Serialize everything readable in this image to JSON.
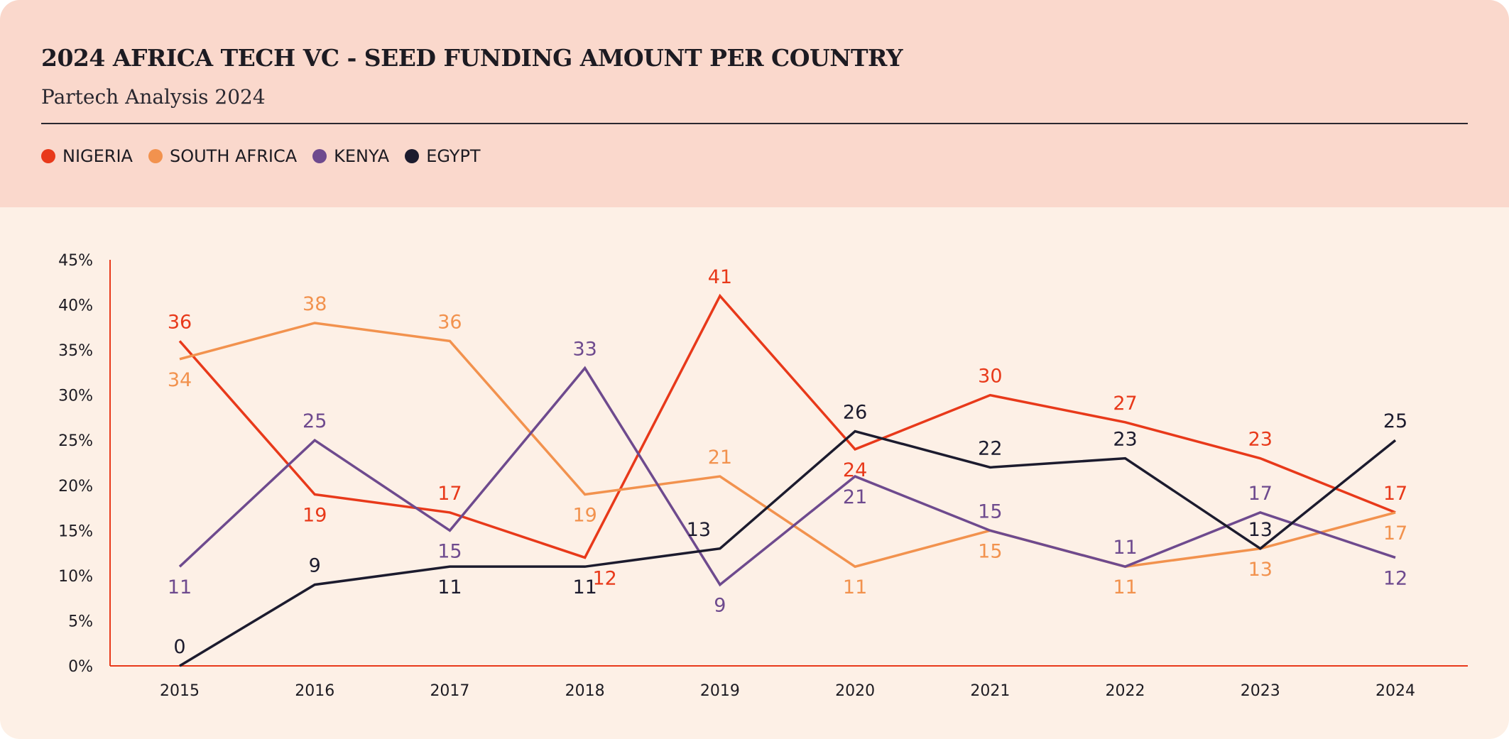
{
  "chart_data": {
    "type": "line",
    "title": "2024 AFRICA TECH VC - SEED FUNDING AMOUNT PER COUNTRY",
    "subtitle": "Partech Analysis 2024",
    "x": [
      "2015",
      "2016",
      "2017",
      "2018",
      "2019",
      "2020",
      "2021",
      "2022",
      "2023",
      "2024"
    ],
    "ylim": [
      0,
      45
    ],
    "yticks": [
      "0%",
      "5%",
      "10%",
      "15%",
      "20%",
      "25%",
      "30%",
      "35%",
      "40%",
      "45%"
    ],
    "ytick_values": [
      0,
      5,
      10,
      15,
      20,
      25,
      30,
      35,
      40,
      45
    ],
    "grid": false,
    "legend_placement": "top-left",
    "series": [
      {
        "name": "NIGERIA",
        "color": "#E8391A",
        "values": [
          36,
          19,
          17,
          12,
          41,
          24,
          30,
          27,
          23,
          17
        ]
      },
      {
        "name": "SOUTH AFRICA",
        "color": "#F2924E",
        "values": [
          34,
          38,
          36,
          19,
          21,
          11,
          15,
          11,
          13,
          17
        ]
      },
      {
        "name": "KENYA",
        "color": "#6E4A8E",
        "values": [
          11,
          25,
          15,
          33,
          9,
          21,
          15,
          11,
          17,
          12
        ]
      },
      {
        "name": "EGYPT",
        "color": "#1C1B2E",
        "values": [
          0,
          9,
          11,
          11,
          13,
          26,
          22,
          23,
          13,
          25
        ]
      }
    ],
    "axis_color": "#E8391A"
  }
}
